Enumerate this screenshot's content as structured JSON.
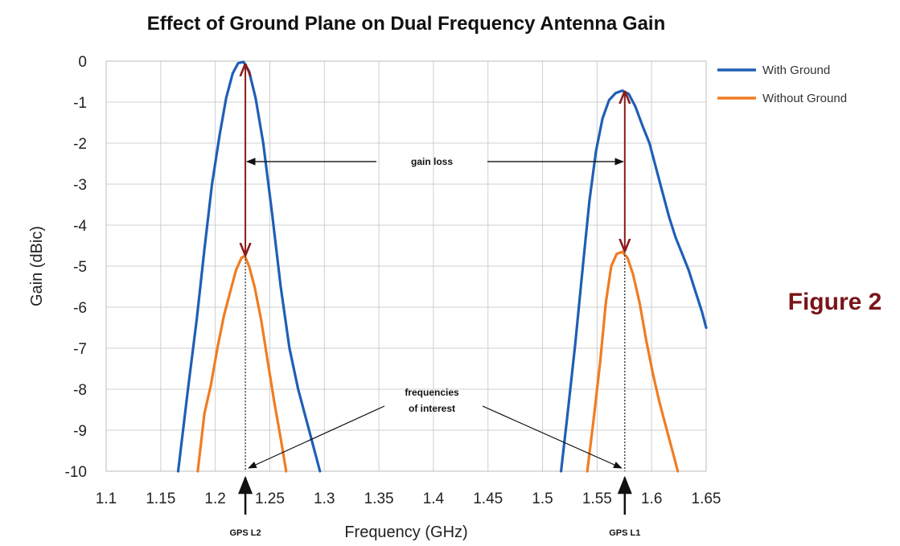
{
  "figure_label": "Figure 2",
  "colors": {
    "with_ground": "#1f5fb5",
    "without_ground": "#f07c22",
    "figure_label": "#7a1419",
    "gain_arrow": "#8b1a1a",
    "grid": "#cfcfcf"
  },
  "chart_data": {
    "type": "line",
    "title": "Effect of Ground Plane on Dual Frequency Antenna Gain",
    "xlabel": "Frequency (GHz)",
    "ylabel": "Gain (dBic)",
    "xlim": [
      1.1,
      1.65
    ],
    "ylim": [
      -10,
      0
    ],
    "x_ticks": [
      "1.1",
      "1.15",
      "1.2",
      "1.25",
      "1.3",
      "1.35",
      "1.4",
      "1.45",
      "1.5",
      "1.55",
      "1.6",
      "1.65"
    ],
    "y_ticks": [
      "0",
      "-1",
      "-2",
      "-3",
      "-4",
      "-5",
      "-6",
      "-7",
      "-8",
      "-9",
      "-10"
    ],
    "grid": true,
    "legend_position": "top-right, outside",
    "series": [
      {
        "name": "With Ground",
        "color": "#1f5fb5",
        "points": [
          [
            1.166,
            -10
          ],
          [
            1.175,
            -8.0
          ],
          [
            1.183,
            -6.3
          ],
          [
            1.19,
            -4.6
          ],
          [
            1.197,
            -3.0
          ],
          [
            1.204,
            -1.8
          ],
          [
            1.21,
            -0.9
          ],
          [
            1.216,
            -0.3
          ],
          [
            1.221,
            -0.05
          ],
          [
            1.226,
            -0.02
          ],
          [
            1.231,
            -0.25
          ],
          [
            1.237,
            -0.9
          ],
          [
            1.244,
            -2.0
          ],
          [
            1.252,
            -3.7
          ],
          [
            1.26,
            -5.5
          ],
          [
            1.268,
            -7.0
          ],
          [
            1.276,
            -8.0
          ],
          [
            1.284,
            -8.8
          ],
          [
            1.292,
            -9.6
          ],
          [
            1.296,
            -10
          ],
          null,
          [
            1.517,
            -10
          ],
          [
            1.523,
            -8.6
          ],
          [
            1.53,
            -6.9
          ],
          [
            1.537,
            -5.0
          ],
          [
            1.543,
            -3.4
          ],
          [
            1.549,
            -2.2
          ],
          [
            1.555,
            -1.4
          ],
          [
            1.561,
            -0.95
          ],
          [
            1.567,
            -0.78
          ],
          [
            1.573,
            -0.72
          ],
          [
            1.579,
            -0.8
          ],
          [
            1.585,
            -1.1
          ],
          [
            1.592,
            -1.6
          ],
          [
            1.598,
            -2.0
          ],
          [
            1.604,
            -2.6
          ],
          [
            1.61,
            -3.2
          ],
          [
            1.616,
            -3.8
          ],
          [
            1.622,
            -4.3
          ],
          [
            1.628,
            -4.7
          ],
          [
            1.634,
            -5.1
          ],
          [
            1.64,
            -5.6
          ],
          [
            1.646,
            -6.1
          ],
          [
            1.65,
            -6.5
          ]
        ]
      },
      {
        "name": "Without Ground",
        "color": "#f07c22",
        "points": [
          [
            1.184,
            -10
          ],
          [
            1.19,
            -8.6
          ],
          [
            1.196,
            -7.9
          ],
          [
            1.202,
            -7.0
          ],
          [
            1.208,
            -6.2
          ],
          [
            1.214,
            -5.6
          ],
          [
            1.219,
            -5.1
          ],
          [
            1.224,
            -4.8
          ],
          [
            1.227,
            -4.75
          ],
          [
            1.231,
            -5.0
          ],
          [
            1.236,
            -5.5
          ],
          [
            1.242,
            -6.3
          ],
          [
            1.248,
            -7.3
          ],
          [
            1.254,
            -8.3
          ],
          [
            1.26,
            -9.2
          ],
          [
            1.265,
            -10
          ],
          null,
          [
            1.541,
            -10
          ],
          [
            1.547,
            -8.7
          ],
          [
            1.553,
            -7.3
          ],
          [
            1.558,
            -5.9
          ],
          [
            1.563,
            -5.0
          ],
          [
            1.568,
            -4.7
          ],
          [
            1.573,
            -4.65
          ],
          [
            1.578,
            -4.8
          ],
          [
            1.583,
            -5.2
          ],
          [
            1.589,
            -5.9
          ],
          [
            1.595,
            -6.8
          ],
          [
            1.601,
            -7.6
          ],
          [
            1.607,
            -8.3
          ],
          [
            1.613,
            -8.9
          ],
          [
            1.619,
            -9.5
          ],
          [
            1.624,
            -10
          ]
        ]
      }
    ],
    "annotations": {
      "gain_loss_label": "gain loss",
      "frequencies_label_line1": "frequencies",
      "frequencies_label_line2": "of interest",
      "markers": [
        {
          "label": "GPS L2",
          "x": 1.2276,
          "top": -0.05,
          "bottom": -4.75
        },
        {
          "label": "GPS L1",
          "x": 1.5754,
          "top": -0.72,
          "bottom": -4.65
        }
      ],
      "gain_loss_y": -2.45
    }
  }
}
